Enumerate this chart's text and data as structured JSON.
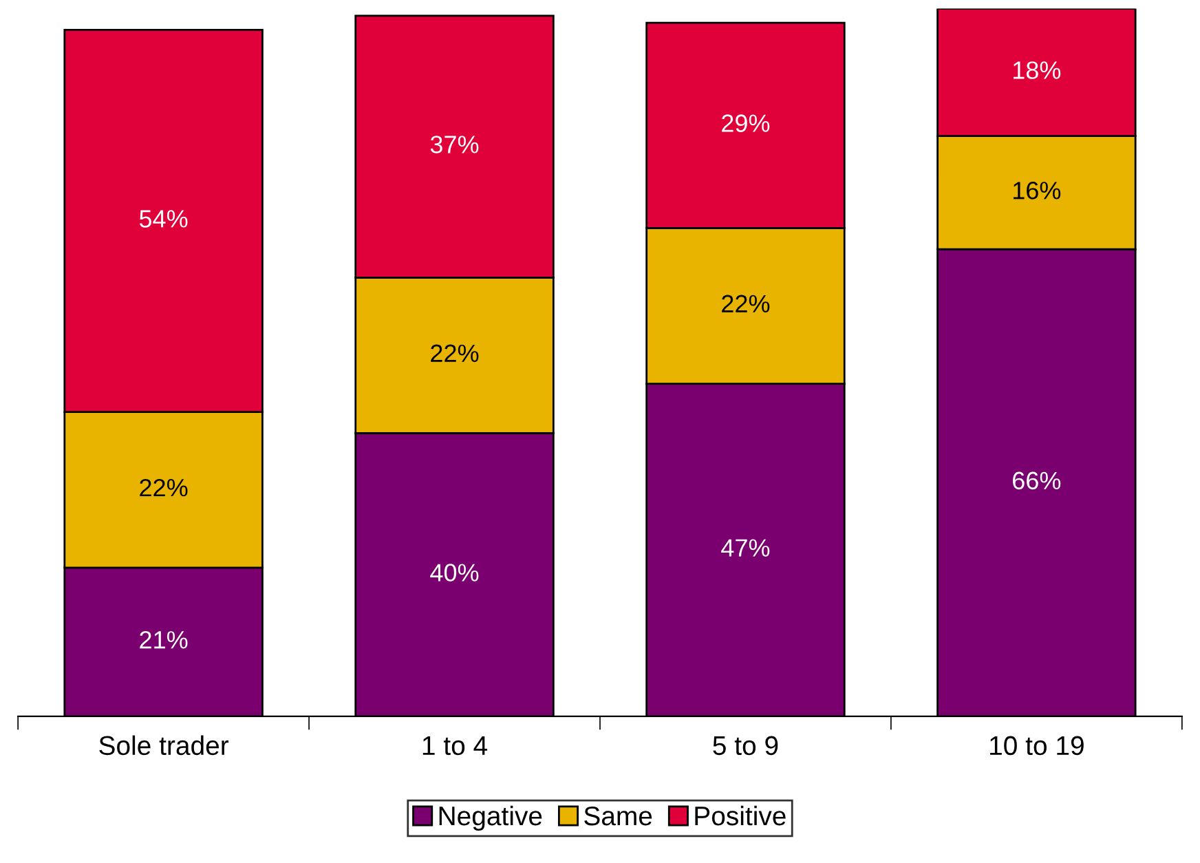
{
  "chart_data": {
    "type": "bar",
    "stacked": true,
    "legend": "bottom",
    "categories": [
      "Sole trader",
      "1 to 4",
      "5 to 9",
      "10 to 19"
    ],
    "series": [
      {
        "name": "Negative",
        "color": "#7a0070",
        "values": [
          21,
          40,
          47,
          66
        ],
        "value_labels": [
          "21%",
          "40%",
          "47%",
          "66%"
        ]
      },
      {
        "name": "Same",
        "color": "#e8b400",
        "values": [
          22,
          22,
          22,
          16
        ],
        "value_labels": [
          "22%",
          "22%",
          "22%",
          "16%"
        ]
      },
      {
        "name": "Positive",
        "color": "#e0003a",
        "values": [
          54,
          37,
          29,
          18
        ],
        "value_labels": [
          "54%",
          "37%",
          "29%",
          "18%"
        ]
      }
    ]
  }
}
